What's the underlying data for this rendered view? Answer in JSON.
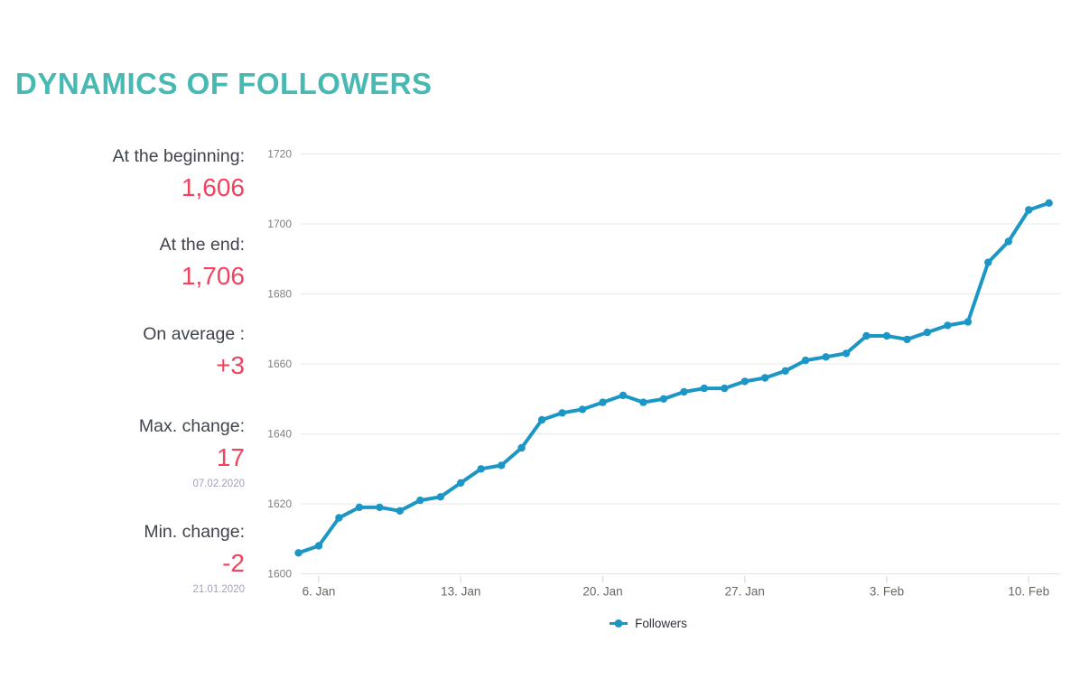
{
  "page_title": "DYNAMICS OF FOLLOWERS",
  "colors": {
    "title": "#48b8b3",
    "stat_value": "#f4415e",
    "stat_label": "#3f444c",
    "stat_date": "#a2a0bd",
    "line": "#1c97c5",
    "gridline": "#e9e9e9",
    "axis_line": "#dce3ec",
    "y_tick_label": "#7f7f7f",
    "x_tick_label": "#6c6862"
  },
  "stats": [
    {
      "label": "At the beginning:",
      "value": "1,606",
      "date": ""
    },
    {
      "label": "At the end:",
      "value": "1,706",
      "date": ""
    },
    {
      "label": "On average :",
      "value": "+3",
      "date": ""
    },
    {
      "label": "Max. change:",
      "value": "17",
      "date": "07.02.2020"
    },
    {
      "label": "Min. change:",
      "value": "-2",
      "date": "21.01.2020"
    }
  ],
  "chart_data": {
    "type": "line",
    "title": "",
    "xlabel": "",
    "ylabel": "",
    "ylim": [
      1600,
      1720
    ],
    "grid": true,
    "legend_position": "bottom",
    "x": [
      "05.01.2020",
      "06.01.2020",
      "07.01.2020",
      "08.01.2020",
      "09.01.2020",
      "10.01.2020",
      "11.01.2020",
      "12.01.2020",
      "13.01.2020",
      "14.01.2020",
      "15.01.2020",
      "16.01.2020",
      "17.01.2020",
      "18.01.2020",
      "19.01.2020",
      "20.01.2020",
      "21.01.2020",
      "22.01.2020",
      "23.01.2020",
      "24.01.2020",
      "25.01.2020",
      "26.01.2020",
      "27.01.2020",
      "28.01.2020",
      "29.01.2020",
      "30.01.2020",
      "31.01.2020",
      "01.02.2020",
      "02.02.2020",
      "03.02.2020",
      "04.02.2020",
      "05.02.2020",
      "06.02.2020",
      "07.02.2020",
      "08.02.2020",
      "09.02.2020",
      "10.02.2020",
      "11.02.2020"
    ],
    "series": [
      {
        "name": "Followers",
        "values": [
          1606,
          1608,
          1616,
          1619,
          1619,
          1618,
          1621,
          1622,
          1626,
          1630,
          1631,
          1636,
          1644,
          1646,
          1647,
          1649,
          1651,
          1649,
          1650,
          1652,
          1653,
          1653,
          1655,
          1656,
          1658,
          1661,
          1662,
          1663,
          1668,
          1668,
          1667,
          1669,
          1671,
          1672,
          1689,
          1695,
          1704,
          1706
        ]
      }
    ],
    "yticks": [
      1600,
      1620,
      1640,
      1660,
      1680,
      1700,
      1720
    ],
    "xticks": [
      {
        "index": 1,
        "label": "6. Jan"
      },
      {
        "index": 8,
        "label": "13. Jan"
      },
      {
        "index": 15,
        "label": "20. Jan"
      },
      {
        "index": 22,
        "label": "27. Jan"
      },
      {
        "index": 29,
        "label": "3. Feb"
      },
      {
        "index": 36,
        "label": "10. Feb"
      }
    ]
  }
}
